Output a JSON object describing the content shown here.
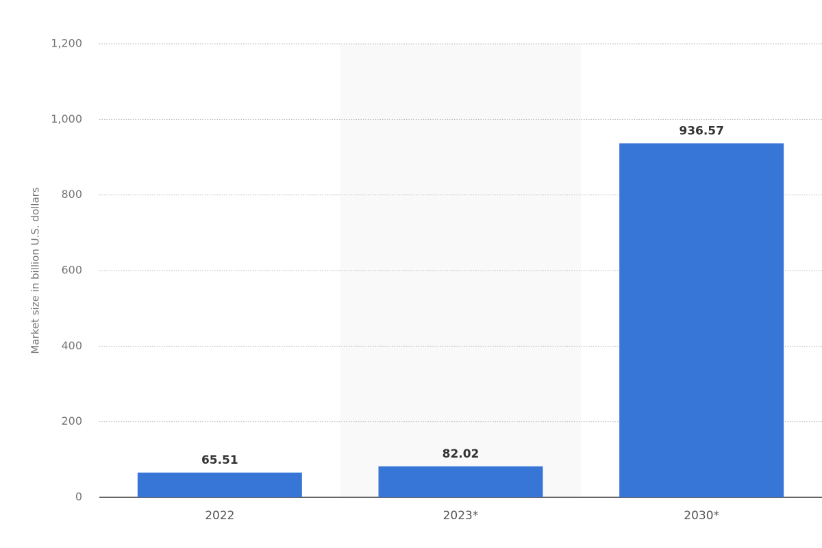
{
  "chart_data": {
    "type": "bar",
    "y_axis_label": "Market size in billion U.S. dollars",
    "categories": [
      "2022",
      "2023*",
      "2030*"
    ],
    "values": [
      65.51,
      82.02,
      936.57
    ],
    "color": "#3776d6",
    "ylim": [
      0,
      1200
    ],
    "yticks": [
      0,
      200,
      400,
      600,
      800,
      {
        "value": 1000,
        "label": "1,000"
      },
      {
        "value": 1200,
        "label": "1,200"
      }
    ],
    "grid": true
  }
}
